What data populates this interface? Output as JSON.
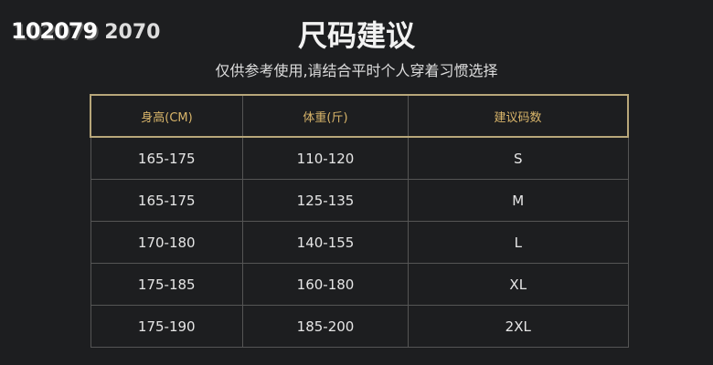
{
  "watermark": [
    "102079",
    "2070"
  ],
  "title": "尺码建议",
  "subtitle": "仅供参考使用,请结合平时个人穿着习惯选择",
  "table": {
    "headers": [
      "身高(CM)",
      "体重(斤)",
      "建议码数"
    ],
    "rows": [
      [
        "165-175",
        "110-120",
        "S"
      ],
      [
        "165-175",
        "125-135",
        "M"
      ],
      [
        "170-180",
        "140-155",
        "L"
      ],
      [
        "175-185",
        "160-180",
        "XL"
      ],
      [
        "175-190",
        "185-200",
        "2XL"
      ]
    ]
  },
  "colors": {
    "background": "#1d1e20",
    "header_text": "#d9b56a",
    "border_gold": "#b8a77a"
  }
}
